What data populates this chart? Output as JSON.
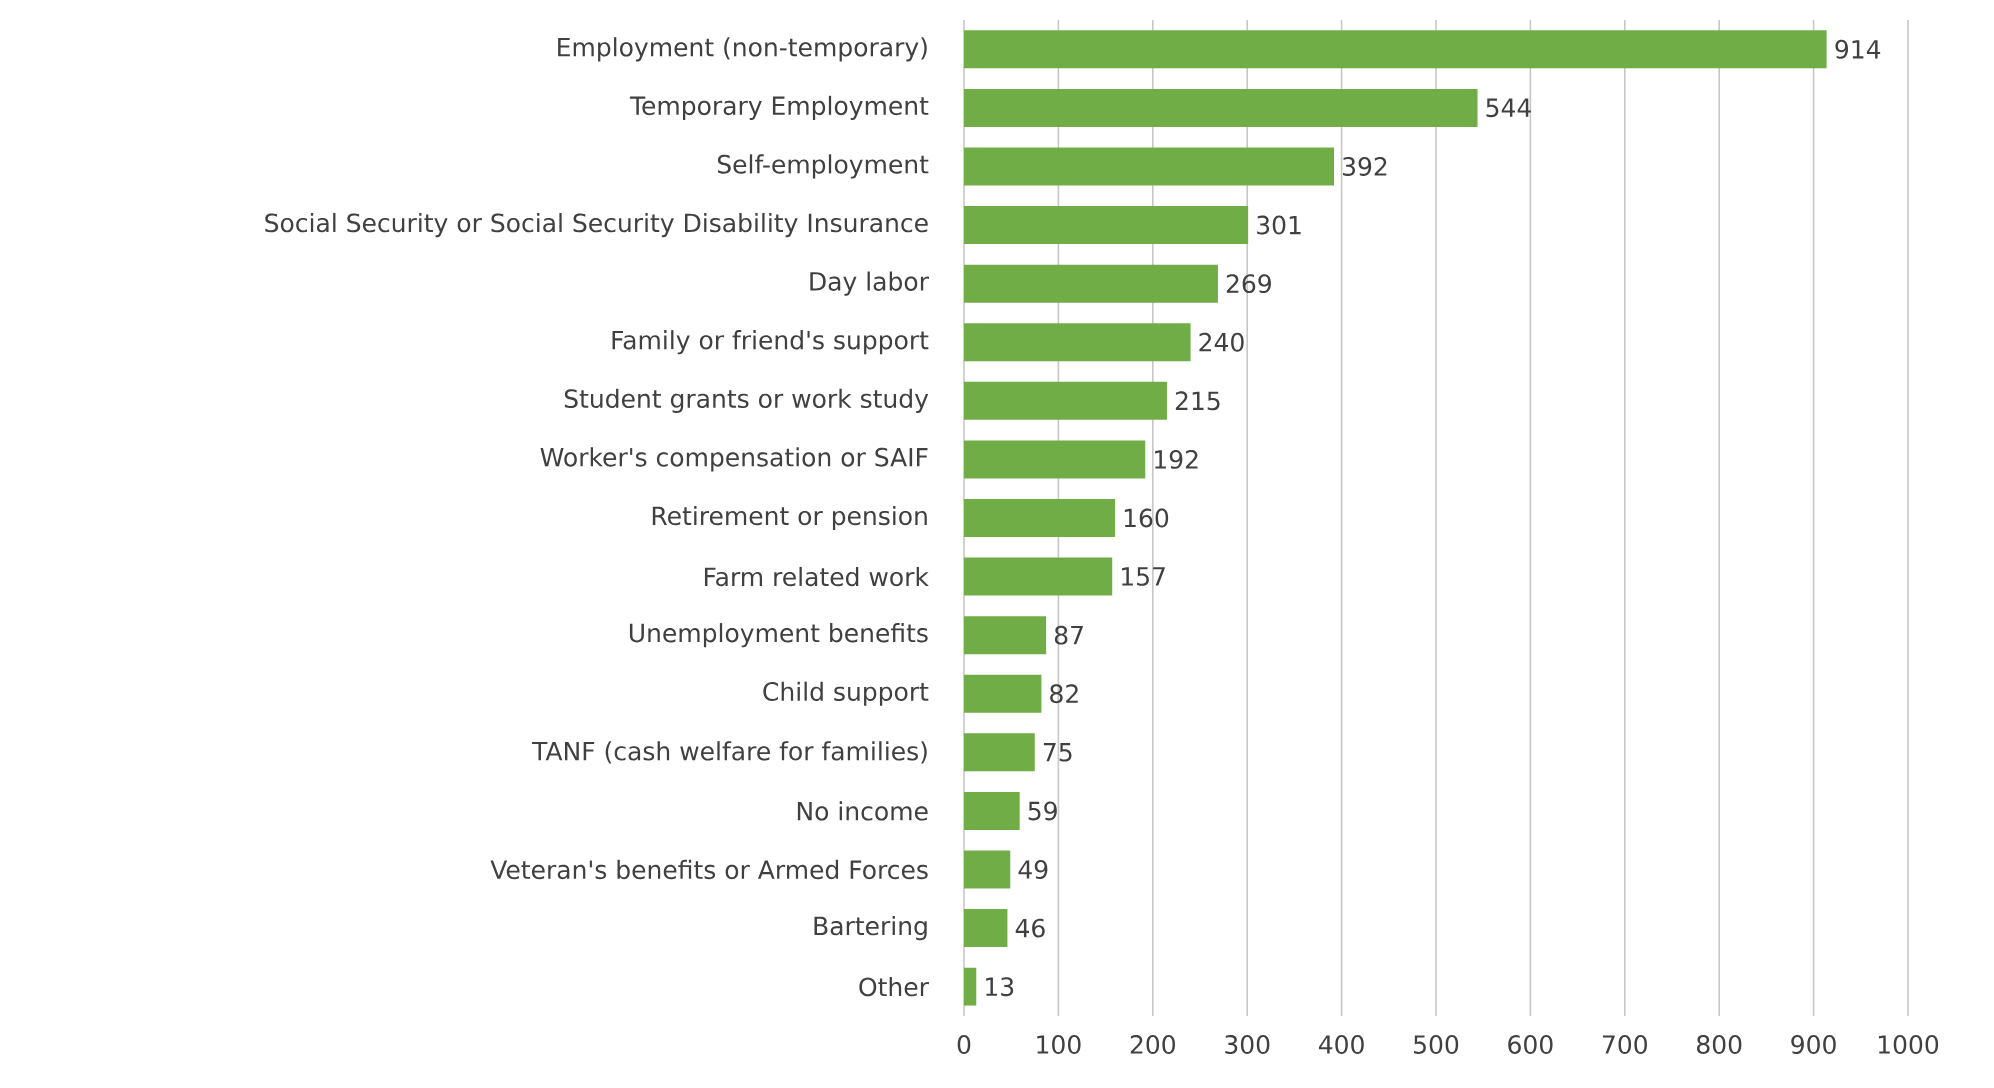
{
  "chart_data": {
    "type": "bar",
    "orientation": "horizontal",
    "categories": [
      "Employment (non-temporary)",
      "Temporary Employment",
      "Self-employment",
      "Social Security or Social Security Disability Insurance",
      "Day labor",
      "Family or friend's support",
      "Student grants or work study",
      "Worker's compensation or SAIF",
      "Retirement or pension",
      "Farm related work",
      "Unemployment benefits",
      "Child support",
      "TANF (cash welfare for families)",
      "No income",
      "Veteran's benefits or Armed Forces",
      "Bartering",
      "Other"
    ],
    "values": [
      914,
      544,
      392,
      301,
      269,
      240,
      215,
      192,
      160,
      157,
      87,
      82,
      75,
      59,
      49,
      46,
      13
    ],
    "color": "#70ad47",
    "xlim": [
      0,
      1000
    ],
    "xticks": [
      0,
      100,
      200,
      300,
      400,
      500,
      600,
      700,
      800,
      900,
      1000
    ],
    "grid": "x",
    "data_labels": true
  }
}
